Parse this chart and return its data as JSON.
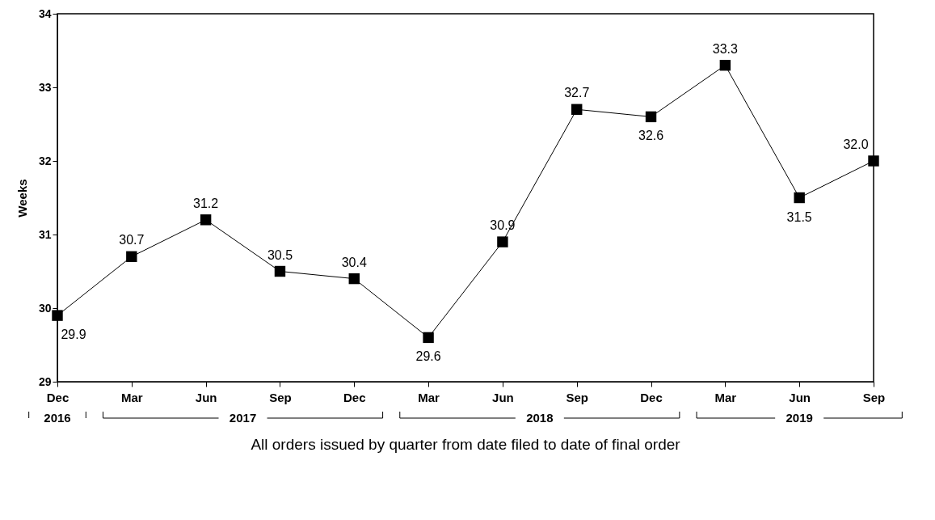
{
  "chart_data": {
    "type": "line",
    "categories": [
      "Dec",
      "Mar",
      "Jun",
      "Sep",
      "Dec",
      "Mar",
      "Jun",
      "Sep",
      "Dec",
      "Mar",
      "Jun",
      "Sep"
    ],
    "series": [
      {
        "color": "#000000",
        "values": [
          29.9,
          30.7,
          31.2,
          30.5,
          30.4,
          29.6,
          30.9,
          32.7,
          32.6,
          33.3,
          31.5,
          32.0
        ]
      }
    ],
    "ylabel": "Weeks",
    "xlabel": "All orders issued by quarter from date filed to date of final order",
    "ylim": [
      29,
      34
    ],
    "yticks": [
      29,
      30,
      31,
      32,
      33,
      34
    ],
    "annotations": [
      "2016",
      "2017",
      "2018",
      "2019"
    ],
    "value_labels": [
      "29.9",
      "30.7",
      "31.2",
      "30.5",
      "30.4",
      "29.6",
      "30.9",
      "32.7",
      "32.6",
      "33.3",
      "31.5",
      "32.0"
    ],
    "marker": "square",
    "line_style": "solid"
  }
}
